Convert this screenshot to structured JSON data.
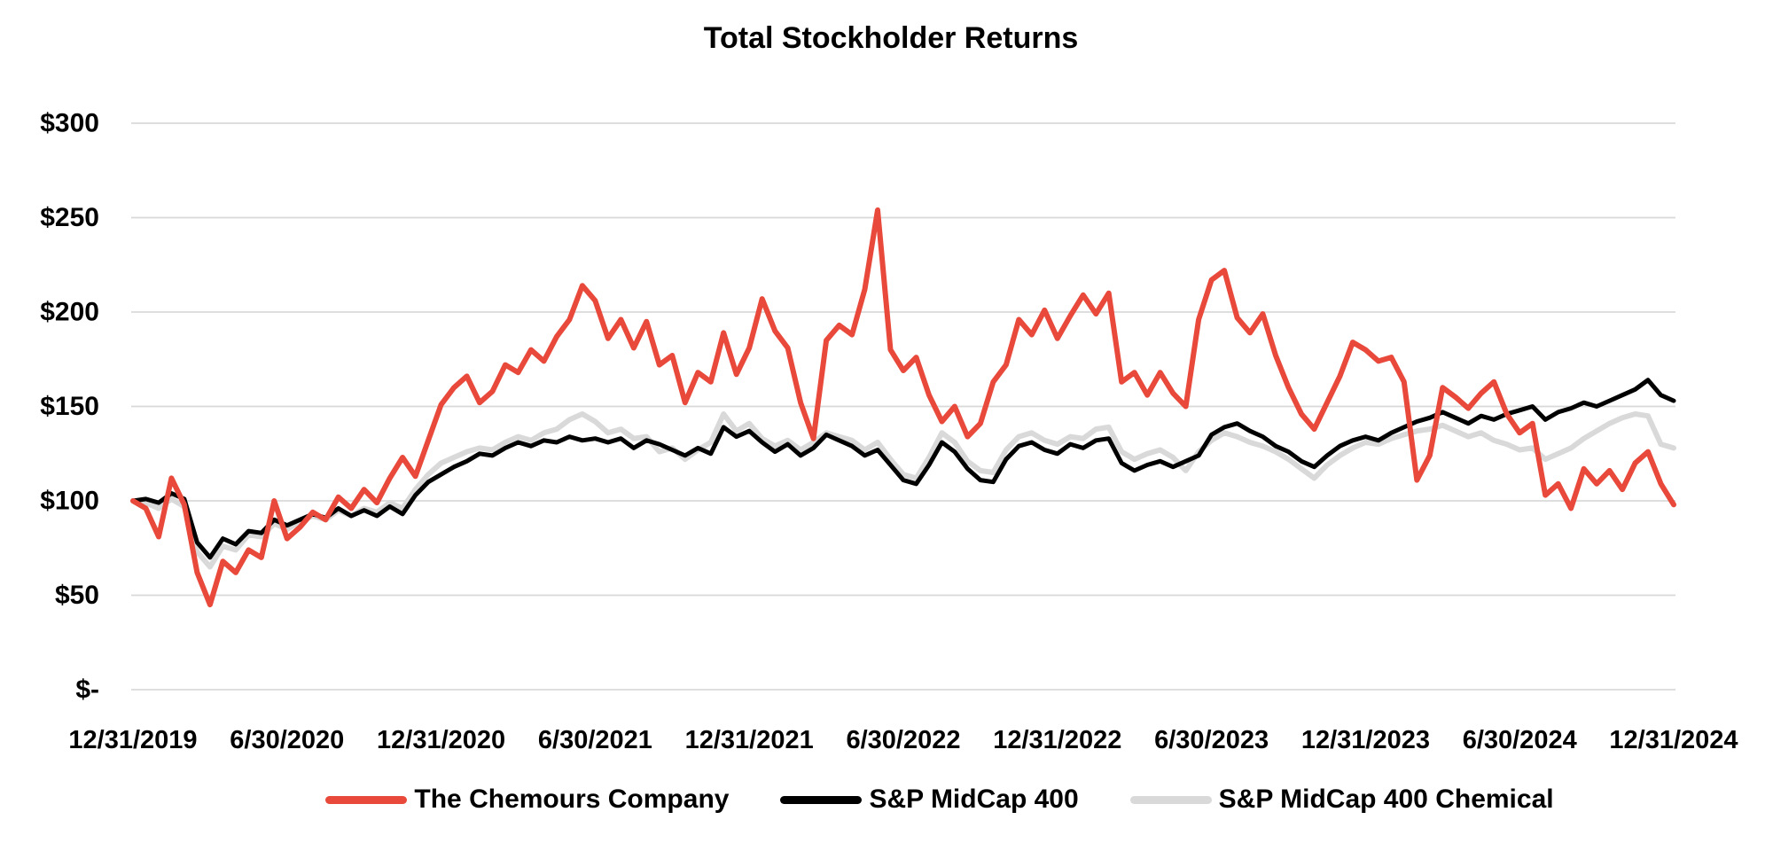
{
  "title": "Total Stockholder Returns",
  "chart_data": {
    "type": "line",
    "title": "Total Stockholder Returns",
    "x_axis": {
      "tick_labels": [
        "12/31/2019",
        "6/30/2020",
        "12/31/2020",
        "6/30/2021",
        "12/31/2021",
        "6/30/2022",
        "12/31/2022",
        "6/30/2023",
        "12/31/2023",
        "6/30/2024",
        "12/31/2024"
      ],
      "unit": "date"
    },
    "y_axis": {
      "tick_labels": [
        "$300",
        "$250",
        "$200",
        "$150",
        "$100",
        "$50",
        "$-"
      ],
      "tick_values": [
        300,
        250,
        200,
        150,
        100,
        50,
        0
      ],
      "ylim": [
        0,
        300
      ],
      "gridline_step": 50
    },
    "grid": "horizontal",
    "gridline_color": "#D9D9D9",
    "background": "#FFFFFF",
    "legend_position": "bottom",
    "x_start_label": "12/31/2019",
    "x_end_label": "12/31/2024",
    "x_step_months": 0.5,
    "series": [
      {
        "name": "The Chemours Company",
        "color": "#E8493B",
        "stroke_width": 6,
        "values": [
          100,
          96,
          81,
          112,
          98,
          62,
          45,
          68,
          62,
          74,
          70,
          100,
          80,
          86,
          94,
          90,
          102,
          96,
          106,
          99,
          112,
          123,
          113,
          132,
          151,
          160,
          166,
          152,
          158,
          172,
          168,
          180,
          174,
          187,
          196,
          214,
          206,
          186,
          196,
          181,
          195,
          172,
          177,
          152,
          168,
          163,
          189,
          167,
          181,
          207,
          190,
          181,
          152,
          133,
          185,
          193,
          188,
          212,
          254,
          180,
          169,
          176,
          156,
          142,
          150,
          134,
          141,
          163,
          172,
          196,
          188,
          201,
          186,
          198,
          209,
          199,
          210,
          163,
          168,
          156,
          168,
          157,
          150,
          196,
          217,
          222,
          197,
          189,
          199,
          177,
          160,
          146,
          138,
          152,
          166,
          184,
          180,
          174,
          176,
          163,
          111,
          124,
          160,
          155,
          149,
          157,
          163,
          146,
          136,
          141,
          103,
          109,
          96,
          117,
          109,
          116,
          106,
          120,
          126,
          109,
          98
        ]
      },
      {
        "name": "S&P MidCap 400",
        "color": "#000000",
        "stroke_width": 5,
        "values": [
          100,
          101,
          99,
          104,
          101,
          78,
          70,
          80,
          77,
          84,
          83,
          90,
          87,
          90,
          93,
          91,
          96,
          92,
          95,
          92,
          97,
          93,
          103,
          110,
          114,
          118,
          121,
          125,
          124,
          128,
          131,
          129,
          132,
          131,
          134,
          132,
          133,
          131,
          133,
          128,
          132,
          130,
          127,
          124,
          128,
          125,
          139,
          134,
          137,
          131,
          126,
          130,
          124,
          128,
          135,
          132,
          129,
          124,
          127,
          119,
          111,
          109,
          119,
          131,
          126,
          117,
          111,
          110,
          122,
          129,
          131,
          127,
          125,
          130,
          128,
          132,
          133,
          120,
          116,
          119,
          121,
          118,
          121,
          124,
          135,
          139,
          141,
          137,
          134,
          129,
          126,
          121,
          118,
          124,
          129,
          132,
          134,
          132,
          136,
          139,
          142,
          144,
          147,
          144,
          141,
          145,
          143,
          146,
          148,
          150,
          143,
          147,
          149,
          152,
          150,
          153,
          156,
          159,
          164,
          156,
          153
        ]
      },
      {
        "name": "S&P MidCap 400 Chemical",
        "color": "#D9D9D9",
        "stroke_width": 6,
        "values": [
          100,
          99,
          96,
          101,
          97,
          73,
          65,
          76,
          74,
          82,
          81,
          88,
          85,
          89,
          92,
          90,
          95,
          92,
          96,
          94,
          99,
          96,
          106,
          114,
          120,
          123,
          126,
          128,
          127,
          131,
          134,
          132,
          136,
          138,
          143,
          146,
          142,
          136,
          138,
          133,
          134,
          126,
          128,
          122,
          127,
          131,
          146,
          137,
          141,
          133,
          129,
          132,
          127,
          131,
          136,
          134,
          132,
          127,
          131,
          122,
          114,
          112,
          123,
          136,
          131,
          121,
          116,
          115,
          127,
          134,
          136,
          132,
          130,
          134,
          133,
          138,
          139,
          126,
          122,
          125,
          127,
          123,
          116,
          126,
          132,
          136,
          134,
          131,
          129,
          126,
          122,
          117,
          112,
          119,
          124,
          128,
          131,
          130,
          133,
          135,
          137,
          138,
          140,
          137,
          134,
          136,
          132,
          130,
          127,
          128,
          122,
          125,
          128,
          133,
          137,
          141,
          144,
          146,
          145,
          130,
          128
        ]
      }
    ]
  }
}
